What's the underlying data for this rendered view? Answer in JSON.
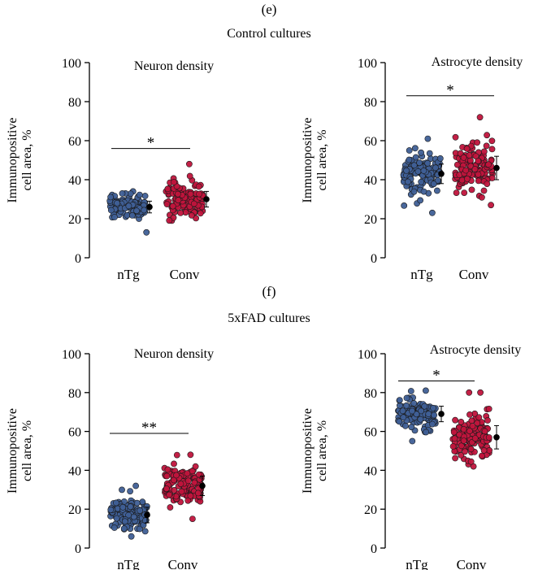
{
  "sections": [
    {
      "letter": "(e)",
      "title": "Control cultures"
    },
    {
      "letter": "(f)",
      "title": "5xFAD cultures"
    }
  ],
  "colors": {
    "nTg": "#3f5f96",
    "Conv": "#c0143c",
    "mean_marker": "#000000"
  },
  "chart_data": [
    {
      "type": "scatter",
      "section": "Control cultures",
      "title": "Neuron density",
      "ylabel": "Immunopositive cell area, %",
      "ylim": [
        0,
        100
      ],
      "yticks": [
        0,
        20,
        40,
        60,
        80,
        100
      ],
      "categories": [
        "nTg",
        "Conv"
      ],
      "series": [
        {
          "name": "nTg",
          "mean": 26,
          "sd": 3,
          "min": 13,
          "max": 34
        },
        {
          "name": "Conv",
          "mean": 30,
          "sd": 4,
          "min": 19,
          "max": 48
        }
      ],
      "significance": [
        {
          "between": [
            "nTg",
            "Conv"
          ],
          "y": 56,
          "label": "*"
        }
      ]
    },
    {
      "type": "scatter",
      "section": "Control cultures",
      "title": "Astrocyte density",
      "ylabel": "Immunopositive cell area, %",
      "ylim": [
        0,
        100
      ],
      "yticks": [
        0,
        20,
        40,
        60,
        80,
        100
      ],
      "categories": [
        "nTg",
        "Conv"
      ],
      "series": [
        {
          "name": "nTg",
          "mean": 43,
          "sd": 5,
          "min": 23,
          "max": 61
        },
        {
          "name": "Conv",
          "mean": 46,
          "sd": 6,
          "min": 27,
          "max": 72
        }
      ],
      "significance": [
        {
          "between": [
            "nTg",
            "Conv"
          ],
          "y": 83,
          "label": "*"
        }
      ]
    },
    {
      "type": "scatter",
      "section": "5xFAD cultures",
      "title": "Neuron density",
      "ylabel": "Immunopositive cell area, %",
      "ylim": [
        0,
        100
      ],
      "yticks": [
        0,
        20,
        40,
        60,
        80,
        100
      ],
      "categories": [
        "nTg",
        "Conv"
      ],
      "series": [
        {
          "name": "nTg",
          "mean": 17,
          "sd": 4,
          "min": 6,
          "max": 32
        },
        {
          "name": "Conv",
          "mean": 32,
          "sd": 5,
          "min": 15,
          "max": 48
        }
      ],
      "significance": [
        {
          "between": [
            "nTg",
            "Conv"
          ],
          "y": 59,
          "label": "**"
        }
      ]
    },
    {
      "type": "scatter",
      "section": "5xFAD cultures",
      "title": "Astrocyte density",
      "ylabel": "Immunopositive cell area, %",
      "ylim": [
        0,
        100
      ],
      "yticks": [
        0,
        20,
        40,
        60,
        80,
        100
      ],
      "categories": [
        "nTg",
        "Conv"
      ],
      "series": [
        {
          "name": "nTg",
          "mean": 69,
          "sd": 4,
          "min": 55,
          "max": 81
        },
        {
          "name": "Conv",
          "mean": 57,
          "sd": 6,
          "min": 42,
          "max": 80
        }
      ],
      "significance": [
        {
          "between": [
            "nTg",
            "Conv"
          ],
          "y": 86,
          "label": "*"
        }
      ]
    }
  ]
}
